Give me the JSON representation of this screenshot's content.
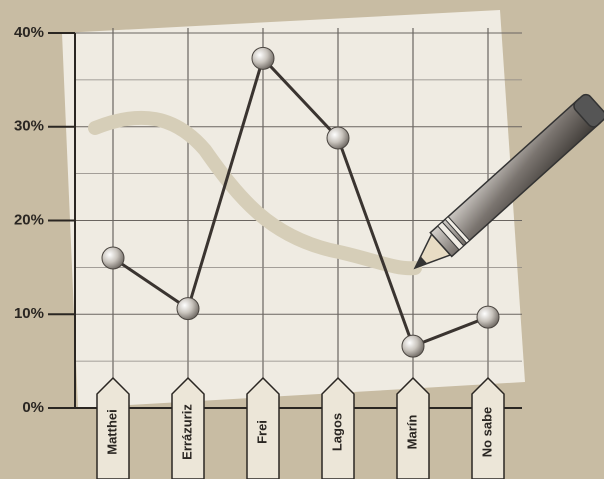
{
  "chart_data": {
    "type": "line",
    "categories": [
      "Matthei",
      "Errázuriz",
      "Frei",
      "Lagos",
      "Marín",
      "No sabe"
    ],
    "values": [
      16,
      10.6,
      37.3,
      28.8,
      6.6,
      9.7
    ],
    "color": "#3a3430",
    "ylim": [
      0,
      40
    ],
    "yticks": [
      {
        "value": 0,
        "label": "0%"
      },
      {
        "value": 10,
        "label": "10%"
      },
      {
        "value": 20,
        "label": "20%"
      },
      {
        "value": 30,
        "label": "30%"
      },
      {
        "value": 40,
        "label": "40%"
      }
    ],
    "grid": true
  }
}
